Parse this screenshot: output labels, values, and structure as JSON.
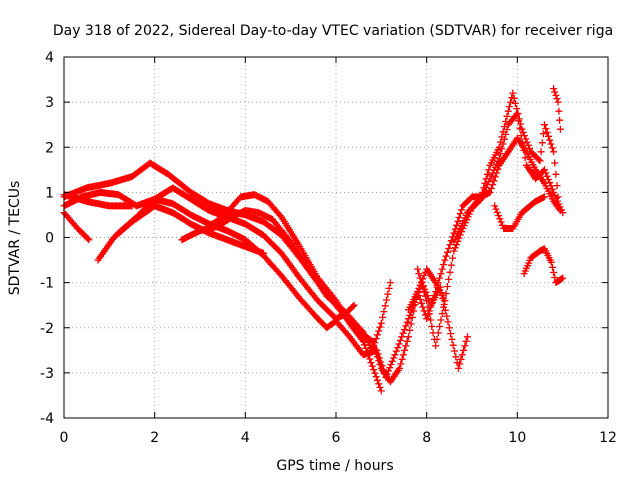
{
  "chart_data": {
    "type": "scatter",
    "title": "Day 318 of 2022, Sidereal Day-to-day VTEC variation (SDTVAR) for receiver riga",
    "xlabel": "GPS time / hours",
    "ylabel": "SDTVAR / TECUs",
    "xlim": [
      0,
      12
    ],
    "ylim": [
      -4,
      4
    ],
    "xticks": [
      0,
      2,
      4,
      6,
      8,
      10,
      12
    ],
    "yticks": [
      -4,
      -3,
      -2,
      -1,
      0,
      1,
      2,
      3,
      4
    ],
    "xtick_labels": [
      "0",
      "2",
      "4",
      "6",
      "8",
      "10",
      "12"
    ],
    "ytick_labels": [
      "-4",
      "-3",
      "-2",
      "-1",
      "0",
      "1",
      "2",
      "3",
      "4"
    ],
    "grid": true,
    "marker": "+",
    "color": "#ff0000",
    "series": [
      {
        "name": "arc-1",
        "points": [
          [
            0.0,
            0.9
          ],
          [
            0.5,
            1.1
          ],
          [
            1.0,
            1.2
          ],
          [
            1.5,
            1.35
          ],
          [
            1.9,
            1.65
          ],
          [
            2.3,
            1.4
          ],
          [
            2.8,
            1.0
          ],
          [
            3.2,
            0.75
          ],
          [
            3.6,
            0.6
          ],
          [
            4.0,
            0.5
          ],
          [
            4.4,
            0.35
          ],
          [
            4.8,
            0.05
          ],
          [
            5.2,
            -0.45
          ],
          [
            5.6,
            -1.0
          ],
          [
            6.0,
            -1.5
          ],
          [
            6.4,
            -2.0
          ],
          [
            6.8,
            -2.3
          ],
          [
            7.0,
            -2.9
          ],
          [
            7.2,
            -3.2
          ],
          [
            7.4,
            -2.9
          ],
          [
            7.6,
            -2.2
          ],
          [
            7.8,
            -1.2
          ],
          [
            8.0,
            -0.7
          ],
          [
            8.2,
            -1.0
          ],
          [
            8.4,
            -1.4
          ]
        ]
      },
      {
        "name": "arc-2",
        "points": [
          [
            0.0,
            0.7
          ],
          [
            0.4,
            0.9
          ],
          [
            0.8,
            1.0
          ],
          [
            1.2,
            0.95
          ],
          [
            1.6,
            0.7
          ],
          [
            2.0,
            0.85
          ],
          [
            2.4,
            1.1
          ],
          [
            2.8,
            0.85
          ],
          [
            3.2,
            0.6
          ],
          [
            3.6,
            0.45
          ],
          [
            4.0,
            0.3
          ],
          [
            4.4,
            0.05
          ],
          [
            4.8,
            -0.35
          ],
          [
            5.2,
            -0.9
          ],
          [
            5.6,
            -1.4
          ],
          [
            6.0,
            -1.8
          ],
          [
            6.2,
            -1.7
          ],
          [
            6.4,
            -1.5
          ]
        ]
      },
      {
        "name": "arc-3",
        "points": [
          [
            0.0,
            0.55
          ],
          [
            0.3,
            0.2
          ],
          [
            0.55,
            -0.05
          ]
        ]
      },
      {
        "name": "arc-4",
        "points": [
          [
            0.0,
            0.95
          ],
          [
            0.5,
            0.8
          ],
          [
            1.0,
            0.7
          ],
          [
            1.5,
            0.7
          ]
        ]
      },
      {
        "name": "arc-5",
        "points": [
          [
            0.75,
            -0.5
          ],
          [
            1.1,
            0.0
          ],
          [
            1.5,
            0.35
          ],
          [
            2.0,
            0.7
          ],
          [
            2.4,
            0.55
          ],
          [
            2.8,
            0.3
          ],
          [
            3.2,
            0.1
          ],
          [
            3.6,
            -0.05
          ],
          [
            4.0,
            -0.2
          ],
          [
            4.4,
            -0.35
          ]
        ]
      },
      {
        "name": "arc-6",
        "points": [
          [
            1.2,
            0.1
          ],
          [
            1.6,
            0.45
          ],
          [
            2.0,
            0.85
          ],
          [
            2.4,
            0.75
          ],
          [
            2.8,
            0.5
          ],
          [
            3.2,
            0.3
          ],
          [
            3.6,
            0.15
          ],
          [
            4.0,
            -0.05
          ],
          [
            4.4,
            -0.4
          ],
          [
            4.8,
            -0.85
          ],
          [
            5.2,
            -1.35
          ],
          [
            5.6,
            -1.8
          ],
          [
            5.8,
            -2.0
          ],
          [
            6.0,
            -1.85
          ],
          [
            6.3,
            -2.2
          ],
          [
            6.6,
            -2.6
          ],
          [
            6.9,
            -2.5
          ],
          [
            7.1,
            -3.1
          ],
          [
            7.3,
            -2.6
          ],
          [
            7.6,
            -1.8
          ],
          [
            7.9,
            -1.0
          ],
          [
            8.1,
            -1.5
          ],
          [
            8.3,
            -1.1
          ],
          [
            8.5,
            -2.0
          ],
          [
            8.7,
            -2.9
          ],
          [
            8.9,
            -2.2
          ]
        ]
      },
      {
        "name": "arc-7",
        "points": [
          [
            2.6,
            -0.05
          ],
          [
            3.0,
            0.15
          ],
          [
            3.4,
            0.25
          ],
          [
            3.7,
            0.45
          ],
          [
            4.0,
            0.6
          ],
          [
            4.3,
            0.55
          ],
          [
            4.6,
            0.4
          ],
          [
            5.0,
            -0.1
          ],
          [
            5.4,
            -0.7
          ],
          [
            5.8,
            -1.3
          ],
          [
            6.2,
            -1.65
          ],
          [
            6.6,
            -2.1
          ],
          [
            6.8,
            -2.5
          ],
          [
            7.0,
            -1.9
          ],
          [
            7.2,
            -1.0
          ]
        ]
      },
      {
        "name": "arc-8",
        "points": [
          [
            3.2,
            0.25
          ],
          [
            3.5,
            0.45
          ],
          [
            3.9,
            0.9
          ],
          [
            4.2,
            0.95
          ],
          [
            4.5,
            0.8
          ],
          [
            4.8,
            0.45
          ],
          [
            5.2,
            -0.2
          ],
          [
            5.6,
            -0.9
          ],
          [
            6.0,
            -1.4
          ],
          [
            6.3,
            -1.9
          ],
          [
            6.6,
            -2.3
          ],
          [
            7.0,
            -3.4
          ]
        ]
      },
      {
        "name": "arc-9",
        "points": [
          [
            7.8,
            -0.7
          ],
          [
            8.0,
            -1.4
          ],
          [
            8.2,
            -2.4
          ],
          [
            8.4,
            -1.4
          ],
          [
            8.6,
            -0.3
          ],
          [
            8.8,
            0.2
          ],
          [
            9.0,
            0.65
          ],
          [
            9.2,
            0.85
          ],
          [
            9.4,
            1.3
          ],
          [
            9.6,
            1.75
          ],
          [
            9.8,
            2.5
          ],
          [
            10.0,
            2.75
          ],
          [
            10.2,
            1.6
          ],
          [
            10.4,
            1.3
          ],
          [
            10.6,
            1.5
          ],
          [
            10.8,
            1.0
          ],
          [
            11.0,
            0.55
          ]
        ]
      },
      {
        "name": "arc-10",
        "points": [
          [
            7.6,
            -1.6
          ],
          [
            7.8,
            -1.2
          ],
          [
            8.0,
            -1.8
          ],
          [
            8.2,
            -1.2
          ],
          [
            8.4,
            -0.5
          ],
          [
            8.6,
            0.1
          ],
          [
            8.8,
            0.7
          ],
          [
            9.0,
            0.9
          ],
          [
            9.2,
            0.9
          ],
          [
            9.4,
            1.6
          ],
          [
            9.6,
            2.0
          ],
          [
            9.8,
            2.8
          ],
          [
            9.9,
            3.2
          ],
          [
            10.1,
            2.4
          ],
          [
            10.3,
            1.9
          ],
          [
            10.5,
            1.7
          ],
          [
            10.6,
            2.5
          ],
          [
            10.8,
            1.9
          ],
          [
            10.9,
            0.9
          ]
        ]
      },
      {
        "name": "arc-11",
        "points": [
          [
            8.6,
            -0.1
          ],
          [
            8.9,
            0.55
          ],
          [
            9.2,
            0.9
          ],
          [
            9.4,
            1.0
          ],
          [
            9.6,
            1.6
          ],
          [
            9.8,
            1.9
          ],
          [
            10.0,
            2.2
          ],
          [
            10.2,
            1.9
          ],
          [
            10.4,
            1.5
          ],
          [
            10.6,
            1.2
          ],
          [
            10.8,
            0.8
          ],
          [
            10.95,
            0.6
          ]
        ]
      },
      {
        "name": "arc-12",
        "points": [
          [
            9.5,
            0.7
          ],
          [
            9.7,
            0.2
          ],
          [
            9.9,
            0.2
          ],
          [
            10.1,
            0.55
          ],
          [
            10.4,
            0.8
          ],
          [
            10.6,
            0.9
          ]
        ]
      },
      {
        "name": "arc-13",
        "points": [
          [
            10.8,
            3.3
          ],
          [
            10.9,
            3.0
          ],
          [
            10.95,
            2.4
          ]
        ]
      },
      {
        "name": "arc-14",
        "points": [
          [
            10.15,
            -0.8
          ],
          [
            10.3,
            -0.45
          ],
          [
            10.5,
            -0.3
          ],
          [
            10.6,
            -0.25
          ],
          [
            10.75,
            -0.55
          ],
          [
            10.85,
            -1.0
          ],
          [
            11.0,
            -0.9
          ]
        ]
      }
    ]
  }
}
